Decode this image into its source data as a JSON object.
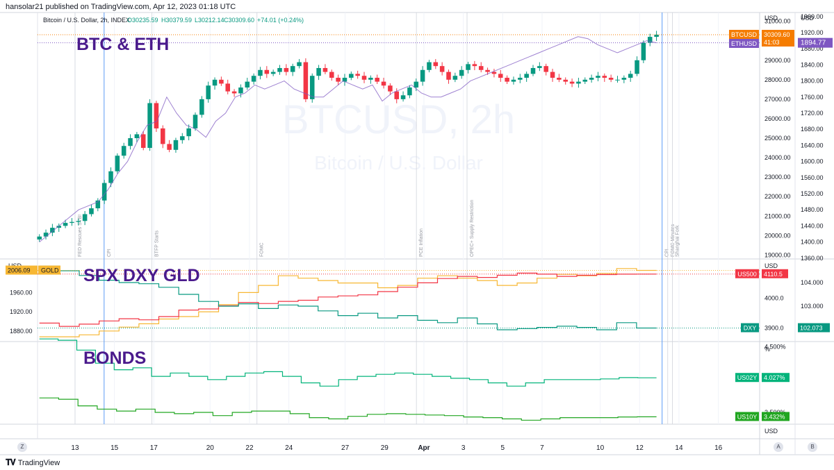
{
  "publisher_line": "hansolar21 published on TradingView.com, Apr 12, 2023 01:18 UTC",
  "brand": "TradingView",
  "colors": {
    "btc": "#f57c00",
    "eth": "#7e57c2",
    "spx": "#f23645",
    "dxy": "#089981",
    "gold": "#f7b733",
    "us02y": "#00b37a",
    "us10y": "#21a621",
    "candle_up": "#089981",
    "candle_down": "#f23645",
    "event_line": "#5b9cf6",
    "annotation": "#4a1a8c"
  },
  "buttons": {
    "z": "Z",
    "a": "A",
    "b": "B"
  },
  "chart_data": [
    {
      "type": "candlestick",
      "pane": "main",
      "title": "Bitcoin / U.S. Dollar, 2h, INDEX",
      "ohlc": {
        "o": "O30235.59",
        "h": "H30379.59",
        "l": "L30212.14",
        "c": "C30309.60",
        "chg": "+74.01 (+0.24%)"
      },
      "annotation": "BTC & ETH",
      "watermark": {
        "line1": "BTCUSD, 2h",
        "line2": "Bitcoin / U.S. Dollar"
      },
      "left_axis": {
        "title": "USD",
        "ticks": [
          "31000.00",
          "30000.00",
          "29000.00",
          "28000.00",
          "27000.00",
          "26000.00",
          "25000.00",
          "24000.00",
          "23000.00",
          "22000.00",
          "21000.00",
          "20000.00",
          "19000.00"
        ]
      },
      "right_axis": {
        "title": "USD",
        "ticks": [
          "1960.00",
          "1920.00",
          "1880.00",
          "1840.00",
          "1800.00",
          "1760.00",
          "1720.00",
          "1680.00",
          "1640.00",
          "1600.00",
          "1560.00",
          "1520.00",
          "1480.00",
          "1440.00",
          "1400.00",
          "1360.00"
        ]
      },
      "ylim": [
        18800,
        31450
      ],
      "eth_ylim": [
        1358,
        1970
      ],
      "btc_closes": [
        19950,
        20150,
        20400,
        20500,
        20650,
        20700,
        20750,
        21100,
        21400,
        21800,
        22700,
        23300,
        24100,
        24600,
        25000,
        25200,
        24500,
        26800,
        25500,
        24700,
        24400,
        24900,
        25100,
        25500,
        26200,
        27000,
        27700,
        28000,
        27800,
        27400,
        27300,
        27600,
        27900,
        28200,
        28500,
        28300,
        28400,
        28600,
        28400,
        28700,
        28900,
        27000,
        28200,
        28600,
        28400,
        28100,
        27900,
        28100,
        28300,
        28200,
        28000,
        28100,
        27900,
        27700,
        27400,
        27000,
        27200,
        27600,
        27900,
        28500,
        28900,
        28700,
        28400,
        28000,
        28200,
        28500,
        28800,
        28700,
        28500,
        28400,
        28300,
        28100,
        27900,
        28000,
        28100,
        28300,
        28600,
        28700,
        28400,
        28100,
        28000,
        27900,
        27800,
        27900,
        28000,
        28100,
        28200,
        28100,
        28000,
        28000,
        28100,
        28300,
        29000,
        29900,
        30200,
        30309.6
      ],
      "eth_closes": [
        1400,
        1420,
        1440,
        1460,
        1480,
        1490,
        1500,
        1530,
        1570,
        1600,
        1650,
        1690,
        1700,
        1760,
        1720,
        1690,
        1680,
        1660,
        1700,
        1720,
        1760,
        1770,
        1790,
        1780,
        1790,
        1800,
        1780,
        1770,
        1760,
        1760,
        1780,
        1800,
        1790,
        1780,
        1790,
        1750,
        1770,
        1780,
        1790,
        1770,
        1760,
        1760,
        1770,
        1780,
        1800,
        1810,
        1820,
        1830,
        1840,
        1850,
        1860,
        1870,
        1880,
        1890,
        1900,
        1910,
        1905,
        1890,
        1880,
        1870,
        1880,
        1890,
        1900,
        1894.77
      ],
      "series": [
        {
          "name": "BTCUSD",
          "last": "30309.60",
          "sub": "41:03",
          "value": 30309.6,
          "axis": "left"
        },
        {
          "name": "ETHUSD",
          "last": "1894.77",
          "value": 1894.77,
          "axis": "right"
        }
      ],
      "events": [
        {
          "label": "FED Rescues SVB!",
          "x": 2.0,
          "highlight": false
        },
        {
          "label": "CPI",
          "x": 3.55,
          "highlight": true
        },
        {
          "label": "BTFP Starts",
          "x": 6.1,
          "highlight": false
        },
        {
          "label": "FOMC",
          "x": 11.7,
          "highlight": false
        },
        {
          "label": "PCE Inflation",
          "x": 20.2,
          "highlight": false
        },
        {
          "label": "OPEC+ Supply Restriction",
          "x": 22.9,
          "highlight": false
        },
        {
          "label": "CPI",
          "x": 33.3,
          "highlight": true
        },
        {
          "label": "FOMC Minutes",
          "x": 33.6,
          "highlight": false
        },
        {
          "label": "Shanghai Fork",
          "x": 33.85,
          "highlight": false
        }
      ]
    },
    {
      "type": "line",
      "pane": "spx_dxy_gold",
      "annotation": "SPX DXY GLD",
      "left_axis": {
        "title": "USD",
        "ticks": [
          "1960.00",
          "1920.00",
          "1880.00"
        ]
      },
      "right_axis1": {
        "title": "USD",
        "ticks": [
          "4000.0"
        ]
      },
      "right_axis2": {
        "ticks": [
          "104.000",
          "103.000"
        ]
      },
      "gold_ylim": [
        1858,
        2030
      ],
      "spx_ylim": [
        3800,
        4180
      ],
      "dxy_ylim": [
        101.5,
        105.0
      ],
      "gold_values": [
        1868,
        1868,
        1872,
        1880,
        1888,
        1895,
        1905,
        1910,
        1920,
        1935,
        1960,
        1975,
        1995,
        1990,
        1985,
        1980,
        1980,
        1970,
        1975,
        1990,
        1995,
        1990,
        1985,
        1975,
        1980,
        1990,
        1998,
        1995,
        2000,
        2010,
        2006.09
      ],
      "spx_values": [
        3885,
        3870,
        3880,
        3895,
        3905,
        3900,
        3915,
        3945,
        3950,
        3965,
        3980,
        3975,
        3985,
        3990,
        4005,
        4010,
        4015,
        4030,
        4050,
        4070,
        4090,
        4100,
        4095,
        4105,
        4115,
        4110,
        4100,
        4105,
        4108,
        4110,
        4110.5
      ],
      "dxy_values": [
        104.7,
        104.5,
        104.3,
        104.1,
        104.0,
        103.95,
        103.8,
        103.5,
        103.2,
        103.0,
        103.1,
        102.9,
        103.05,
        103.0,
        102.8,
        102.6,
        102.7,
        102.5,
        102.6,
        102.4,
        102.3,
        102.5,
        102.25,
        102.0,
        102.05,
        102.1,
        102.15,
        102.1,
        102.0,
        102.3,
        102.073
      ],
      "series": [
        {
          "name": "GOLD",
          "last": "2006.09",
          "value": 2006.09
        },
        {
          "name": "US500",
          "last": "4110.5",
          "value": 4110.5
        },
        {
          "name": "DXY",
          "last": "102.073",
          "value": 102.073,
          "label2": "3900.0"
        }
      ]
    },
    {
      "type": "line",
      "pane": "bonds",
      "annotation": "BONDS",
      "right_axis": {
        "title": "%",
        "ticks": [
          "4.500%",
          "3.500%"
        ]
      },
      "ylim": [
        3.32,
        4.58
      ],
      "us02y_values": [
        4.62,
        4.6,
        4.45,
        4.25,
        4.15,
        4.18,
        4.05,
        4.1,
        4.05,
        4.0,
        4.05,
        4.1,
        4.12,
        4.05,
        3.95,
        3.9,
        4.0,
        4.05,
        4.08,
        4.1,
        4.08,
        4.05,
        4.02,
        4.0,
        3.95,
        3.9,
        3.95,
        4.0,
        4.0,
        4.0,
        4.01,
        4.03,
        4.027
      ],
      "us10y_values": [
        3.72,
        3.7,
        3.6,
        3.55,
        3.52,
        3.55,
        3.5,
        3.48,
        3.5,
        3.45,
        3.5,
        3.52,
        3.52,
        3.48,
        3.42,
        3.4,
        3.44,
        3.47,
        3.48,
        3.47,
        3.46,
        3.45,
        3.43,
        3.42,
        3.4,
        3.38,
        3.4,
        3.42,
        3.42,
        3.42,
        3.43,
        3.432
      ],
      "series": [
        {
          "name": "US02Y",
          "last": "4.027%",
          "value": 4.027
        },
        {
          "name": "US10Y",
          "last": "3.432%",
          "value": 3.432
        }
      ]
    },
    {
      "type": "time_axis",
      "right_title": "USD",
      "x_ticks": [
        "13",
        "15",
        "17",
        "20",
        "22",
        "24",
        "27",
        "29",
        "Apr",
        "3",
        "5",
        "7",
        "10",
        "12",
        "14",
        "16"
      ],
      "xlim": [
        0,
        38.5
      ]
    }
  ]
}
